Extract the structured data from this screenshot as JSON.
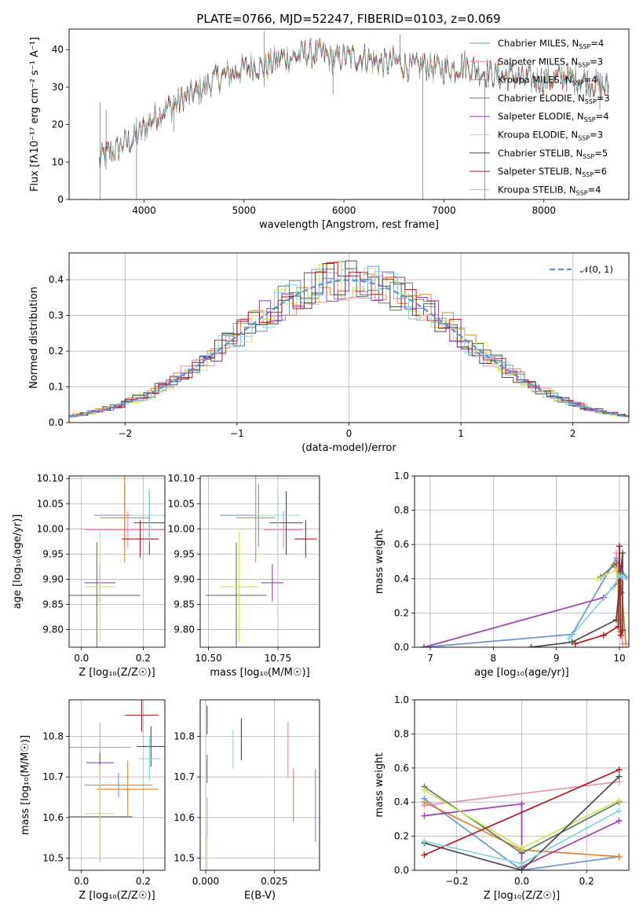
{
  "title": "PLATE=0766, MJD=52247, FIBERID=0103, z=0.069",
  "colors": {
    "chabrier_miles": "#6a93d6",
    "salpeter_miles": "#e88ab9",
    "kroupa_miles": "#e0802b",
    "chabrier_elodie": "#5b7c5b",
    "salpeter_elodie": "#9a3fae",
    "kroupa_elodie": "#cfe35a",
    "chabrier_stelib": "#4a4a4a",
    "salpeter_stelib": "#b01a1a",
    "kroupa_stelib": "#7fd6dc",
    "normal_curve": "#5a8fd6",
    "grid": "#b0b0b0"
  },
  "chart_data": [
    {
      "id": "spectrum",
      "type": "line",
      "title": "PLATE=0766, MJD=52247, FIBERID=0103, z=0.069",
      "xlabel": "wavelength [Angstrom, rest frame]",
      "ylabel": "Flux [fλ10⁻¹⁷ erg cm⁻² s⁻¹ A⁻¹]",
      "xlim": [
        3250,
        8850
      ],
      "ylim": [
        0,
        45.5
      ],
      "xticks": [
        4000,
        5000,
        6000,
        7000,
        8000
      ],
      "yticks": [
        0,
        10,
        20,
        30,
        40
      ],
      "grid": false,
      "legend_position": "top-right",
      "x": [
        3550,
        3600,
        3700,
        3800,
        3900,
        4000,
        4100,
        4200,
        4300,
        4400,
        4500,
        4600,
        4700,
        4800,
        4900,
        5000,
        5100,
        5200,
        5300,
        5400,
        5500,
        5600,
        5700,
        5800,
        5900,
        6000,
        6100,
        6200,
        6300,
        6400,
        6500,
        6600,
        6700,
        6800,
        6900,
        7000,
        7100,
        7200,
        7300,
        7400,
        7500,
        7600,
        7700,
        7800,
        7900,
        8000,
        8100,
        8200,
        8300,
        8400,
        8500,
        8600
      ],
      "flux": [
        10,
        12,
        13,
        15,
        16,
        19,
        22,
        24,
        25,
        27,
        28,
        30,
        32,
        33,
        34,
        35,
        36,
        35,
        37,
        38,
        38,
        39,
        39,
        39,
        37,
        38,
        38,
        38,
        37,
        36,
        37,
        36,
        35,
        36,
        35,
        35,
        35,
        36,
        35,
        34,
        33,
        33,
        33,
        32,
        32,
        32,
        32,
        33,
        32,
        32,
        31,
        30
      ],
      "series": [
        {
          "name": "Chabrier MILES, N",
          "nssp": "4",
          "color": "#6a93d6"
        },
        {
          "name": "Salpeter MILES, N",
          "nssp": "3",
          "color": "#e88ab9"
        },
        {
          "name": "Kroupa MILES, N",
          "nssp": "4",
          "color": "#e0802b"
        },
        {
          "name": "Chabrier ELODIE, N",
          "nssp": "3",
          "color": "#5b7c5b"
        },
        {
          "name": "Salpeter ELODIE, N",
          "nssp": "4",
          "color": "#9a3fae"
        },
        {
          "name": "Kroupa ELODIE, N",
          "nssp": "3",
          "color": "#cfe35a"
        },
        {
          "name": "Chabrier STELIB, N",
          "nssp": "5",
          "color": "#4a4a4a"
        },
        {
          "name": "Salpeter STELIB, N",
          "nssp": "6",
          "color": "#b01a1a"
        },
        {
          "name": "Kroupa STELIB, N",
          "nssp": "4",
          "color": "#7fd6dc"
        }
      ]
    },
    {
      "id": "residuals",
      "type": "line",
      "xlabel": "(data-model)/error",
      "ylabel": "Normed distribution",
      "xlim": [
        -2.5,
        2.5
      ],
      "ylim": [
        0,
        0.475
      ],
      "xticks": [
        -2,
        -1,
        0,
        1,
        2
      ],
      "yticks": [
        0.0,
        0.1,
        0.2,
        0.3,
        0.4
      ],
      "grid": true,
      "legend_position": "top-right",
      "reference_curve": {
        "name": "𝒩(0, 1)",
        "mean": 0,
        "sigma": 1
      }
    },
    {
      "id": "age_vs_Z",
      "type": "scatter",
      "xlabel": "Z [log₁₀(Z/Z☉)]",
      "ylabel": "age  [log₁₀(age/yr)]",
      "xlim": [
        -0.04,
        0.27
      ],
      "ylim": [
        9.765,
        10.105
      ],
      "xticks": [
        0.0,
        0.2
      ],
      "yticks": [
        9.8,
        9.85,
        9.9,
        9.95,
        10.0,
        10.05,
        10.1
      ],
      "grid": true,
      "points": [
        {
          "x": 0.14,
          "xerr": 0.1,
          "y": 10.027,
          "yerr": 0.063,
          "color": "#6a93d6"
        },
        {
          "x": 0.15,
          "xerr": 0.14,
          "y": 9.998,
          "yerr": 0.037,
          "color": "#e88ab9"
        },
        {
          "x": 0.14,
          "xerr": 0.08,
          "y": 10.022,
          "yerr": 0.088,
          "color": "#e0802b"
        },
        {
          "x": 0.05,
          "xerr": 0.14,
          "y": 9.868,
          "yerr": 0.105,
          "color": "#5b7c5b"
        },
        {
          "x": 0.06,
          "xerr": 0.05,
          "y": 9.893,
          "yerr": 0.037,
          "color": "#9a3fae"
        },
        {
          "x": 0.06,
          "xerr": 0.05,
          "y": 9.885,
          "yerr": 0.11,
          "color": "#cfe35a"
        },
        {
          "x": 0.22,
          "xerr": 0.05,
          "y": 10.012,
          "yerr": 0.063,
          "color": "#4a4a4a"
        },
        {
          "x": 0.19,
          "xerr": 0.06,
          "y": 9.98,
          "yerr": 0.037,
          "color": "#b01a1a"
        },
        {
          "x": 0.22,
          "xerr": 0.06,
          "y": 10.027,
          "yerr": 0.053,
          "color": "#7fd6dc"
        }
      ]
    },
    {
      "id": "age_vs_mass",
      "type": "scatter",
      "xlabel": "mass [log₁₀(M/M☉)]",
      "xlim": [
        10.47,
        10.9
      ],
      "ylim": [
        9.765,
        10.105
      ],
      "xticks": [
        10.5,
        10.75
      ],
      "yticks": [
        9.8,
        9.85,
        9.9,
        9.95,
        10.0,
        10.05,
        10.1
      ],
      "grid": true,
      "points": [
        {
          "x": 10.68,
          "xerr": 0.14,
          "y": 10.027,
          "yerr": 0.063,
          "color": "#6a93d6"
        },
        {
          "x": 10.77,
          "xerr": 0.07,
          "y": 9.998,
          "yerr": 0.037,
          "color": "#e88ab9"
        },
        {
          "x": 10.67,
          "xerr": 0.07,
          "y": 10.022,
          "yerr": 0.088,
          "color": "#e0802b"
        },
        {
          "x": 10.6,
          "xerr": 0.11,
          "y": 9.868,
          "yerr": 0.105,
          "color": "#5b7c5b"
        },
        {
          "x": 10.73,
          "xerr": 0.04,
          "y": 9.893,
          "yerr": 0.037,
          "color": "#9a3fae"
        },
        {
          "x": 10.61,
          "xerr": 0.07,
          "y": 9.885,
          "yerr": 0.11,
          "color": "#cfe35a"
        },
        {
          "x": 10.78,
          "xerr": 0.06,
          "y": 10.012,
          "yerr": 0.063,
          "color": "#4a4a4a"
        },
        {
          "x": 10.85,
          "xerr": 0.04,
          "y": 9.98,
          "yerr": 0.037,
          "color": "#b01a1a"
        },
        {
          "x": 10.75,
          "xerr": 0.08,
          "y": 10.027,
          "yerr": 0.053,
          "color": "#7fd6dc"
        }
      ]
    },
    {
      "id": "weight_vs_age",
      "type": "line",
      "xlabel": "age  [log₁₀(age/yr)]",
      "ylabel": "mass weight",
      "xlim": [
        6.75,
        10.15
      ],
      "ylim": [
        0,
        1
      ],
      "xticks": [
        7,
        8,
        9,
        10
      ],
      "yticks": [
        0.0,
        0.2,
        0.4,
        0.6,
        0.8,
        1.0
      ],
      "grid": true,
      "series": [
        {
          "color": "#6a93d6",
          "x": [
            6.9,
            9.25,
            9.95,
            10.1
          ],
          "y": [
            0.0,
            0.075,
            0.52,
            0.41
          ]
        },
        {
          "color": "#e88ab9",
          "x": [
            9.95,
            10.0,
            10.05
          ],
          "y": [
            0.55,
            0.41,
            0.02
          ]
        },
        {
          "color": "#e0802b",
          "x": [
            9.9,
            10.02,
            10.1
          ],
          "y": [
            0.48,
            0.42,
            0.02
          ]
        },
        {
          "color": "#5b7c5b",
          "x": [
            9.7,
            9.95,
            10.02
          ],
          "y": [
            0.41,
            0.49,
            0.09
          ]
        },
        {
          "color": "#9a3fae",
          "x": [
            6.9,
            9.75,
            10.0,
            10.03
          ],
          "y": [
            0.0,
            0.29,
            0.39,
            0.32
          ]
        },
        {
          "color": "#cfe35a",
          "x": [
            9.65,
            9.95,
            10.02
          ],
          "y": [
            0.4,
            0.45,
            0.13
          ]
        },
        {
          "color": "#4a4a4a",
          "x": [
            8.6,
            9.25,
            9.95,
            10.05,
            10.05
          ],
          "y": [
            0.0,
            0.03,
            0.16,
            0.55,
            0.1
          ]
        },
        {
          "color": "#b01a1a",
          "x": [
            9.3,
            9.75,
            9.98,
            10.0,
            10.02,
            10.05
          ],
          "y": [
            0.02,
            0.07,
            0.12,
            0.59,
            0.07,
            0.1
          ]
        },
        {
          "color": "#7fd6dc",
          "x": [
            9.2,
            9.9,
            10.0,
            10.05
          ],
          "y": [
            0.05,
            0.35,
            0.42,
            0.41
          ]
        }
      ]
    },
    {
      "id": "mass_vs_Z",
      "type": "scatter",
      "xlabel": "Z [log₁₀(Z/Z☉)]",
      "ylabel": "mass [log₁₀(M/M☉)]",
      "xlim": [
        -0.04,
        0.27
      ],
      "ylim": [
        10.47,
        10.89
      ],
      "xticks": [
        0.0,
        0.2
      ],
      "yticks": [
        10.5,
        10.6,
        10.7,
        10.8
      ],
      "grid": true,
      "points": [
        {
          "x": 0.12,
          "xerr": 0.11,
          "y": 10.68,
          "yerr": 0.03,
          "color": "#6a93d6"
        },
        {
          "x": 0.06,
          "xerr": 0.1,
          "y": 10.773,
          "yerr": 0.06,
          "color": "#e88ab9"
        },
        {
          "x": 0.15,
          "xerr": 0.1,
          "y": 10.67,
          "yerr": 0.07,
          "color": "#e0802b"
        },
        {
          "x": 0.06,
          "xerr": 0.105,
          "y": 10.602,
          "yerr": 0.11,
          "color": "#5b7c5b"
        },
        {
          "x": 0.06,
          "xerr": 0.045,
          "y": 10.735,
          "yerr": 0.025,
          "color": "#9a3fae"
        },
        {
          "x": 0.06,
          "xerr": 0.045,
          "y": 10.61,
          "yerr": 0.12,
          "color": "#cfe35a"
        },
        {
          "x": 0.225,
          "xerr": 0.045,
          "y": 10.775,
          "yerr": 0.05,
          "color": "#4a4a4a"
        },
        {
          "x": 0.195,
          "xerr": 0.055,
          "y": 10.852,
          "yerr": 0.04,
          "color": "#b01a1a"
        },
        {
          "x": 0.22,
          "xerr": 0.035,
          "y": 10.745,
          "yerr": 0.055,
          "color": "#7fd6dc"
        }
      ]
    },
    {
      "id": "mass_vs_ebv",
      "type": "scatter",
      "xlabel": "E(B-V)",
      "xlim": [
        -0.002,
        0.0415
      ],
      "ylim": [
        10.47,
        10.89
      ],
      "xticks": [
        0.0,
        0.025
      ],
      "yticks": [
        10.5,
        10.6,
        10.7,
        10.8
      ],
      "grid": true,
      "points": [
        {
          "x": 0.04,
          "y": 10.63,
          "yerr": 0.09,
          "color": "#6a93d6"
        },
        {
          "x": 0.03,
          "y": 10.768,
          "yerr": 0.068,
          "color": "#e88ab9"
        },
        {
          "x": 0.032,
          "y": 10.655,
          "yerr": 0.065,
          "color": "#e0802b"
        },
        {
          "x": 0.0005,
          "y": 10.6,
          "yerr": 0.05,
          "color": "#5b7c5b"
        },
        {
          "x": 0.0005,
          "y": 10.72,
          "yerr": 0.035,
          "color": "#9a3fae"
        },
        {
          "x": 0.0005,
          "y": 10.56,
          "yerr": 0.09,
          "color": "#cfe35a"
        },
        {
          "x": 0.013,
          "y": 10.793,
          "yerr": 0.052,
          "color": "#4a4a4a"
        },
        {
          "x": 0.0005,
          "y": 10.84,
          "yerr": 0.035,
          "color": "#b01a1a"
        },
        {
          "x": 0.01,
          "y": 10.768,
          "yerr": 0.048,
          "color": "#7fd6dc"
        }
      ]
    },
    {
      "id": "weight_vs_Z",
      "type": "line",
      "xlabel": "Z [log₁₀(Z/Z☉)]",
      "ylabel": "mass weight",
      "xlim": [
        -0.33,
        0.33
      ],
      "ylim": [
        0,
        1
      ],
      "xticks": [
        -0.2,
        0.0,
        0.2
      ],
      "yticks": [
        0.0,
        0.2,
        0.4,
        0.6,
        0.8,
        1.0
      ],
      "grid": true,
      "series": [
        {
          "color": "#6a93d6",
          "x": [
            -0.3,
            0.0,
            0.3
          ],
          "y": [
            0.42,
            0.0,
            0.08
          ]
        },
        {
          "color": "#e88ab9",
          "x": [
            -0.3,
            0.3
          ],
          "y": [
            0.38,
            0.52
          ]
        },
        {
          "color": "#e0802b",
          "x": [
            -0.3,
            0.0,
            0.3
          ],
          "y": [
            0.4,
            0.12,
            0.08
          ]
        },
        {
          "color": "#5b7c5b",
          "x": [
            -0.3,
            0.0,
            0.3
          ],
          "y": [
            0.49,
            0.1,
            0.4
          ]
        },
        {
          "color": "#9a3fae",
          "x": [
            -0.3,
            0.0,
            0.0,
            0.3
          ],
          "y": [
            0.32,
            0.39,
            0.02,
            0.29
          ]
        },
        {
          "color": "#cfe35a",
          "x": [
            -0.3,
            0.0,
            0.3
          ],
          "y": [
            0.47,
            0.13,
            0.41
          ]
        },
        {
          "color": "#4a4a4a",
          "x": [
            -0.3,
            0.0,
            0.3
          ],
          "y": [
            0.16,
            0.0,
            0.55
          ]
        },
        {
          "color": "#b01a1a",
          "x": [
            -0.3,
            0.3
          ],
          "y": [
            0.09,
            0.59
          ]
        },
        {
          "color": "#7fd6dc",
          "x": [
            -0.3,
            0.0,
            0.3
          ],
          "y": [
            0.17,
            0.04,
            0.35
          ]
        }
      ]
    }
  ]
}
